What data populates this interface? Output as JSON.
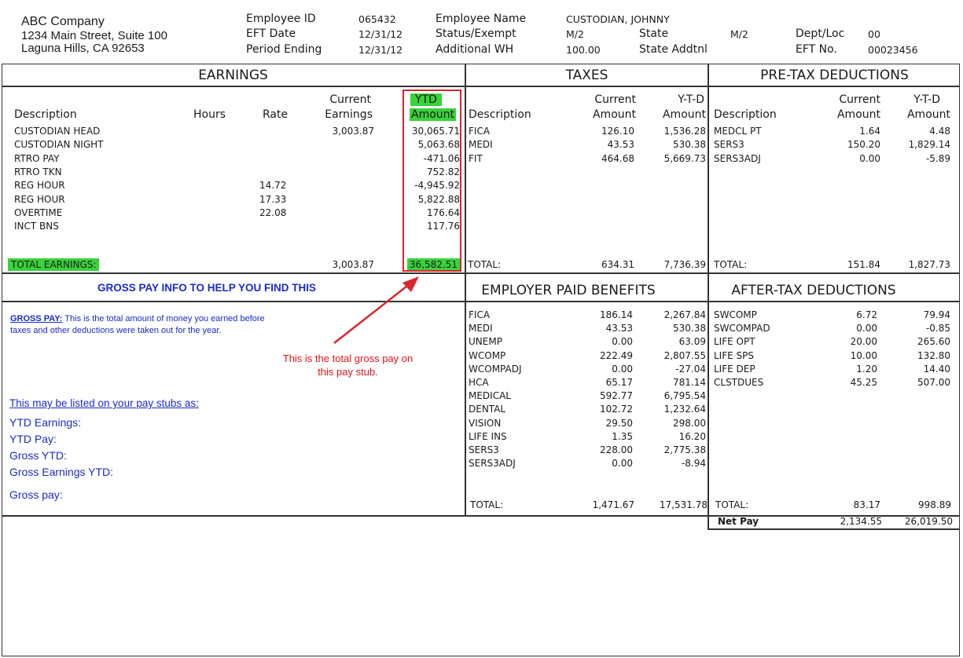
{
  "company": {
    "name": "ABC Company",
    "address1": "1234 Main Street, Suite 100",
    "address2": "Laguna Hills, CA 92653"
  },
  "header": {
    "employee_id_label": "Employee ID",
    "employee_id": "065432",
    "eft_date_label": "EFT Date",
    "eft_date": "12/31/12",
    "period_ending_label": "Period Ending",
    "period_ending": "12/31/12",
    "employee_name_label": "Employee Name",
    "employee_name": "CUSTODIAN, JOHNNY",
    "status_label": "Status/Exempt",
    "status": "M/2",
    "add_wh_label": "Additional WH",
    "add_wh": "100.00",
    "state_label": "State",
    "state": "M/2",
    "state_addtnl_label": "State Addtnl",
    "dept_label": "Dept/Loc",
    "dept": "00",
    "eft_no_label": "EFT No.",
    "eft_no": "00023456"
  },
  "earnings": {
    "title": "EARNINGS",
    "col_description": "Description",
    "col_hours": "Hours",
    "col_rate": "Rate",
    "col_current1": "Current",
    "col_current2": "Earnings",
    "col_ytd1": "YTD",
    "col_ytd2": "Amount",
    "rows": [
      {
        "desc": "CUSTODIAN HEAD",
        "rate": "",
        "current": "3,003.87",
        "ytd": "30,065.71"
      },
      {
        "desc": "CUSTODIAN NIGHT",
        "rate": "",
        "current": "",
        "ytd": "5,063.68"
      },
      {
        "desc": "RTRO PAY",
        "rate": "",
        "current": "",
        "ytd": "-471.06"
      },
      {
        "desc": "RTRO TKN",
        "rate": "",
        "current": "",
        "ytd": "752.82"
      },
      {
        "desc": "REG HOUR",
        "rate": "14.72",
        "current": "",
        "ytd": "-4,945.92"
      },
      {
        "desc": "REG HOUR",
        "rate": "17.33",
        "current": "",
        "ytd": "5,822.88"
      },
      {
        "desc": "OVERTIME",
        "rate": "22.08",
        "current": "",
        "ytd": "176.64"
      },
      {
        "desc": "INCT BNS",
        "rate": "",
        "current": "",
        "ytd": "117.76"
      }
    ],
    "total_label": "TOTAL EARNINGS:",
    "total_current": "3,003.87",
    "total_ytd": "36,582.51"
  },
  "taxes": {
    "title": "TAXES",
    "col_description": "Description",
    "col_current1": "Current",
    "col_current2": "Amount",
    "col_ytd1": "Y-T-D",
    "col_ytd2": "Amount",
    "rows": [
      {
        "desc": "FICA",
        "current": "126.10",
        "ytd": "1,536.28"
      },
      {
        "desc": "MEDI",
        "current": "43.53",
        "ytd": "530.38"
      },
      {
        "desc": "FIT",
        "current": "464.68",
        "ytd": "5,669.73"
      }
    ],
    "total_label": "TOTAL:",
    "total_current": "634.31",
    "total_ytd": "7,736.39"
  },
  "pretax": {
    "title": "PRE-TAX DEDUCTIONS",
    "col_description": "Description",
    "col_current1": "Current",
    "col_current2": "Amount",
    "col_ytd1": "Y-T-D",
    "col_ytd2": "Amount",
    "rows": [
      {
        "desc": "MEDCL PT",
        "current": "1.64",
        "ytd": "4.48"
      },
      {
        "desc": "SERS3",
        "current": "150.20",
        "ytd": "1,829.14"
      },
      {
        "desc": "SERS3ADJ",
        "current": "0.00",
        "ytd": "-5.89"
      }
    ],
    "total_label": "TOTAL:",
    "total_current": "151.84",
    "total_ytd": "1,827.73"
  },
  "employer": {
    "title": "EMPLOYER PAID BENEFITS",
    "rows": [
      {
        "desc": "FICA",
        "current": "186.14",
        "ytd": "2,267.84"
      },
      {
        "desc": "MEDI",
        "current": "43.53",
        "ytd": "530.38"
      },
      {
        "desc": "UNEMP",
        "current": "0.00",
        "ytd": "63.09"
      },
      {
        "desc": "WCOMP",
        "current": "222.49",
        "ytd": "2,807.55"
      },
      {
        "desc": "WCOMPADJ",
        "current": "0.00",
        "ytd": "-27.04"
      },
      {
        "desc": "HCA",
        "current": "65.17",
        "ytd": "781.14"
      },
      {
        "desc": "MEDICAL",
        "current": "592.77",
        "ytd": "6,795.54"
      },
      {
        "desc": "DENTAL",
        "current": "102.72",
        "ytd": "1,232.64"
      },
      {
        "desc": "VISION",
        "current": "29.50",
        "ytd": "298.00"
      },
      {
        "desc": "LIFE INS",
        "current": "1.35",
        "ytd": "16.20"
      },
      {
        "desc": "SERS3",
        "current": "228.00",
        "ytd": "2,775.38"
      },
      {
        "desc": "SERS3ADJ",
        "current": "0.00",
        "ytd": "-8.94"
      }
    ],
    "total_label": "TOTAL:",
    "total_current": "1,471.67",
    "total_ytd": "17,531.78"
  },
  "aftertax": {
    "title": "AFTER-TAX DEDUCTIONS",
    "rows": [
      {
        "desc": "SWCOMP",
        "current": "6.72",
        "ytd": "79.94"
      },
      {
        "desc": "SWCOMPAD",
        "current": "0.00",
        "ytd": "-0.85"
      },
      {
        "desc": "LIFE OPT",
        "current": "20.00",
        "ytd": "265.60"
      },
      {
        "desc": "LIFE SPS",
        "current": "10.00",
        "ytd": "132.80"
      },
      {
        "desc": "LIFE DEP",
        "current": "1.20",
        "ytd": "14.40"
      },
      {
        "desc": "CLSTDUES",
        "current": "45.25",
        "ytd": "507.00"
      }
    ],
    "total_label": "TOTAL:",
    "total_current": "83.17",
    "total_ytd": "998.89",
    "net_label": "Net Pay",
    "net_current": "2,134.55",
    "net_ytd": "26,019.50"
  },
  "info": {
    "banner": "GROSS PAY INFO TO HELP YOU FIND THIS",
    "gross_label": "GROSS PAY:",
    "gross_text1": " This is the total amount of money you earned before",
    "gross_text2": "taxes and other deductions were taken out for the year.",
    "listed_as": "This may be listed on your pay stubs as:",
    "aliases": [
      "YTD Earnings:",
      "YTD Pay:",
      "Gross YTD:",
      "Gross Earnings YTD:",
      "Gross pay:"
    ],
    "annotation1": "This is the total gross pay on",
    "annotation2": "this pay stub."
  },
  "colors": {
    "highlight": "#39d23a",
    "annotation_red": "#d9262c",
    "info_blue": "#1a2bc9"
  }
}
